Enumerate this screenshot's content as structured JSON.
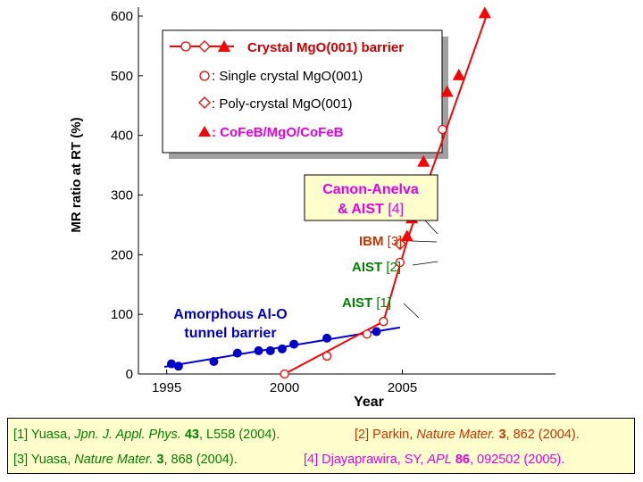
{
  "chart_data": {
    "type": "scatter",
    "xlabel": "Year",
    "ylabel": "MR ratio at RT (%)",
    "xlim": [
      1993.8,
      2011.5
    ],
    "ylim": [
      0,
      600
    ],
    "x_ticks": [
      "1995",
      "2000",
      "2005"
    ],
    "y_ticks": [
      "0",
      "100",
      "200",
      "300",
      "400",
      "500",
      "600"
    ],
    "colors": {
      "alo": "#0000cc",
      "mgo": "#ff0000",
      "canon": "#e600e6",
      "aist": "#008000",
      "ibm": "#cc3300"
    },
    "series": [
      {
        "marker": "filled-circle",
        "color": "#0000cc",
        "points": [
          [
            1995.2,
            17
          ],
          [
            1995.5,
            13
          ],
          [
            1997.0,
            21
          ],
          [
            1998.0,
            35
          ],
          [
            1998.9,
            39
          ],
          [
            1999.4,
            39
          ],
          [
            1999.9,
            42
          ],
          [
            2000.4,
            50
          ],
          [
            2001.8,
            60
          ],
          [
            2003.9,
            71
          ]
        ]
      },
      {
        "marker": "open-circle",
        "color": "#ff0000",
        "points": [
          [
            2000.0,
            0
          ],
          [
            2001.8,
            30
          ],
          [
            2003.5,
            67
          ],
          [
            2004.2,
            88
          ],
          [
            2004.9,
            187
          ],
          [
            2006.0,
            271
          ],
          [
            2006.7,
            410
          ]
        ]
      },
      {
        "marker": "open-diamond",
        "color": "#ff0000",
        "points": [
          [
            2004.9,
            218
          ]
        ]
      },
      {
        "marker": "filled-triangle",
        "color": "#ff0000",
        "points": [
          [
            2005.2,
            230
          ],
          [
            2005.4,
            260
          ],
          [
            2005.9,
            355
          ],
          [
            2006.9,
            472
          ],
          [
            2007.4,
            500
          ],
          [
            2008.5,
            604
          ]
        ]
      }
    ],
    "trend_lines": [
      {
        "color": "#0000cc",
        "points": [
          [
            1994.9,
            12
          ],
          [
            2004.9,
            78
          ]
        ]
      },
      {
        "color": "#ff0000",
        "points": [
          [
            2000.0,
            0
          ],
          [
            2004.2,
            88
          ],
          [
            2004.8,
            170
          ],
          [
            2005.3,
            235
          ],
          [
            2008.6,
            604
          ]
        ]
      }
    ],
    "legend": {
      "title": "Crystal MgO(001) barrier",
      "entries": [
        ": Single crystal MgO(001)",
        ": Poly-crystal MgO(001)",
        ": CoFeB/MgO/CoFeB"
      ]
    },
    "annotations": {
      "alo_label": [
        "Amorphous Al-O",
        "tunnel barrier"
      ],
      "canon": {
        "line1": "Canon-Anelva",
        "line2_prefix": "& AIST ",
        "line2_ref": "[4]"
      },
      "ibm": {
        "name": "IBM ",
        "ref": "[3]"
      },
      "aist2": {
        "name": "AIST ",
        "ref": "[2]"
      },
      "aist1": {
        "name": "AIST ",
        "ref": "[1]"
      }
    }
  },
  "references": {
    "r1": {
      "pre": "[1] Yuasa, ",
      "journal": "Jpn. J. Appl. Phys.",
      "space": " ",
      "vol": "43",
      "post": ", L558 (2004)."
    },
    "r2": {
      "pre": "[2] Parkin, ",
      "journal": "Nature Mater.",
      "space": " ",
      "vol": "3",
      "post": ", 862 (2004)."
    },
    "r3": {
      "pre": "[3] Yuasa, ",
      "journal": "Nature Mater.",
      "space": " ",
      "vol": "3",
      "post": ", 868 (2004)."
    },
    "r4": {
      "pre": "[4] Djayaprawira, SY, ",
      "journal": "APL",
      "space": " ",
      "vol": "86",
      "post": ", 092502 (2005)."
    }
  }
}
